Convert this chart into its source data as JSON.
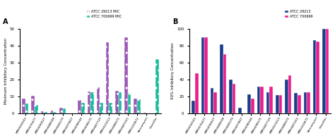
{
  "categories": [
    "MMV656501",
    "MMV676477",
    "MMV690027",
    "MMV688508",
    "MMV668179",
    "MMV697807",
    "MMV698344",
    "MMV698271",
    "MMV687729",
    "MMV021013",
    "MMV688371",
    "MMV687251",
    "MMV102872",
    "Vancomycin",
    "Oxacillin"
  ],
  "mic_29213": [
    9,
    10.5,
    1.5,
    2,
    3.5,
    0.25,
    8,
    13,
    15.5,
    42,
    13.5,
    45,
    9,
    0.5,
    0.3
  ],
  "mic_700699": [
    6,
    5,
    1,
    1,
    3,
    0.25,
    6.5,
    12.5,
    6.5,
    6.5,
    12.5,
    12,
    8.5,
    0.1,
    32
  ],
  "ic50_29213": [
    15,
    90,
    30,
    82,
    40,
    7,
    23,
    32,
    25,
    22,
    40,
    24,
    25,
    87,
    100
  ],
  "ic50_700699": [
    48,
    90,
    25,
    70,
    35,
    0,
    18,
    32,
    32,
    22,
    45,
    22,
    25,
    85,
    100
  ],
  "color_29213_mic": "#9B59B6",
  "color_700699_mic": "#1ABC9C",
  "color_29213_ic50": "#1A3A8A",
  "color_700699_ic50": "#E91E8C",
  "hatch_29213": "..",
  "hatch_700699": "..",
  "ylabel_a": "Minimum Inhibitory Concentration",
  "ylabel_b": "50% Inhibitory Concentration",
  "ylim_a": [
    0,
    50
  ],
  "ylim_b": [
    0,
    100
  ],
  "yticks_a": [
    0,
    10,
    20,
    30,
    40,
    50
  ],
  "yticks_b": [
    0,
    20,
    40,
    60,
    80,
    100
  ],
  "label_a": "A",
  "label_b": "B",
  "legend_a_1": "ATCC 29213 MIC",
  "legend_a_2": "ATCC 700699 MIC",
  "legend_b_1": "ATCC 29213",
  "legend_b_2": "ATCC 700699"
}
